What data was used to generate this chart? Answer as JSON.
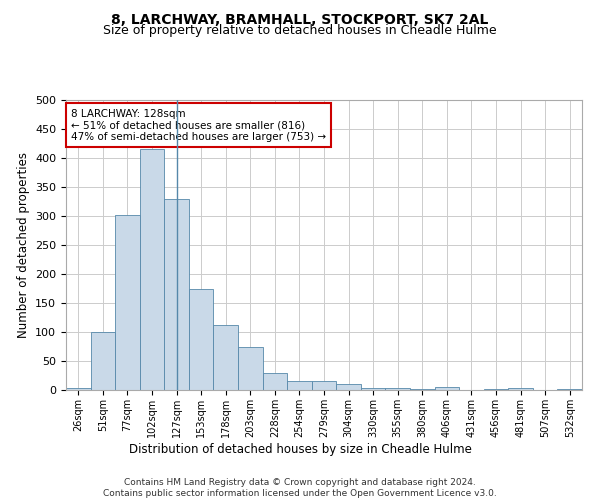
{
  "title": "8, LARCHWAY, BRAMHALL, STOCKPORT, SK7 2AL",
  "subtitle": "Size of property relative to detached houses in Cheadle Hulme",
  "xlabel": "Distribution of detached houses by size in Cheadle Hulme",
  "ylabel": "Number of detached properties",
  "categories": [
    "26sqm",
    "51sqm",
    "77sqm",
    "102sqm",
    "127sqm",
    "153sqm",
    "178sqm",
    "203sqm",
    "228sqm",
    "254sqm",
    "279sqm",
    "304sqm",
    "330sqm",
    "355sqm",
    "380sqm",
    "406sqm",
    "431sqm",
    "456sqm",
    "481sqm",
    "507sqm",
    "532sqm"
  ],
  "values": [
    3,
    100,
    302,
    415,
    330,
    175,
    112,
    75,
    30,
    16,
    16,
    10,
    4,
    4,
    2,
    5,
    0,
    1,
    3,
    0,
    1
  ],
  "bar_color": "#c9d9e8",
  "bar_edge_color": "#5588aa",
  "marker_bar_index": 4,
  "annotation_text": "8 LARCHWAY: 128sqm\n← 51% of detached houses are smaller (816)\n47% of semi-detached houses are larger (753) →",
  "annotation_box_color": "#ffffff",
  "annotation_box_edge_color": "#cc0000",
  "footer_line1": "Contains HM Land Registry data © Crown copyright and database right 2024.",
  "footer_line2": "Contains public sector information licensed under the Open Government Licence v3.0.",
  "ylim": [
    0,
    500
  ],
  "yticks": [
    0,
    50,
    100,
    150,
    200,
    250,
    300,
    350,
    400,
    450,
    500
  ],
  "background_color": "#ffffff",
  "grid_color": "#cccccc",
  "title_fontsize": 10,
  "subtitle_fontsize": 9,
  "xlabel_fontsize": 8.5,
  "ylabel_fontsize": 8.5
}
